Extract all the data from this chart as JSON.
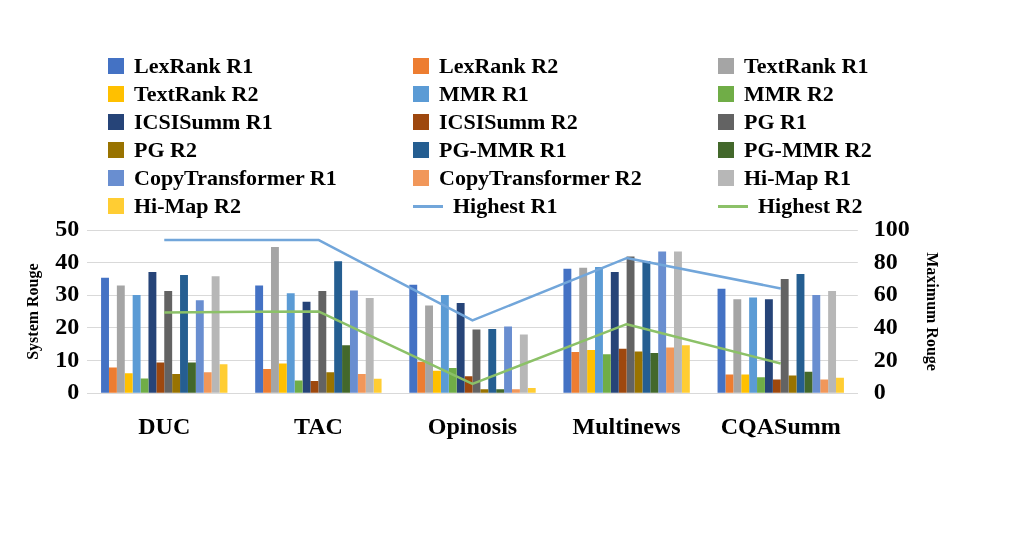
{
  "chart_data": {
    "type": "bar",
    "categories": [
      "DUC",
      "TAC",
      "Opinosis",
      "Multinews",
      "CQASumm"
    ],
    "ylabel": "System Rouge",
    "y2label": "Maximum Rouge",
    "ylim": [
      0,
      50
    ],
    "yticks": [
      0,
      10,
      20,
      30,
      40,
      50
    ],
    "y2lim": [
      0,
      100
    ],
    "y2ticks": [
      0,
      20,
      40,
      60,
      80,
      100
    ],
    "grid": "y",
    "legend": "top",
    "series": [
      {
        "name": "LexRank R1",
        "color": "#4472c4",
        "values": [
          35.4,
          33.0,
          33.2,
          38.1,
          32.0
        ]
      },
      {
        "name": "LexRank R2",
        "color": "#ed7d31",
        "values": [
          7.9,
          7.4,
          9.6,
          12.6,
          5.7
        ]
      },
      {
        "name": "TextRank R1",
        "color": "#a5a5a5",
        "values": [
          33.0,
          44.8,
          26.9,
          38.4,
          28.8
        ]
      },
      {
        "name": "TextRank R2",
        "color": "#ffc000",
        "values": [
          6.1,
          9.1,
          6.9,
          13.2,
          5.7
        ]
      },
      {
        "name": "MMR R1",
        "color": "#5b9bd5",
        "values": [
          30.1,
          30.6,
          30.1,
          38.7,
          29.3
        ]
      },
      {
        "name": "MMR R2",
        "color": "#70ad47",
        "values": [
          4.5,
          3.9,
          7.7,
          11.9,
          4.9
        ]
      },
      {
        "name": "ICSISumm R1",
        "color": "#264478",
        "values": [
          37.1,
          28.0,
          27.6,
          37.1,
          28.8
        ]
      },
      {
        "name": "ICSISumm R2",
        "color": "#9e480e",
        "values": [
          9.4,
          3.7,
          5.2,
          13.6,
          4.2
        ]
      },
      {
        "name": "PG R1",
        "color": "#636363",
        "values": [
          31.3,
          31.3,
          19.5,
          41.9,
          35.0
        ]
      },
      {
        "name": "PG R2",
        "color": "#997300",
        "values": [
          5.9,
          6.4,
          1.2,
          12.8,
          5.4
        ]
      },
      {
        "name": "PG-MMR R1",
        "color": "#255e91",
        "values": [
          36.2,
          40.4,
          19.7,
          40.5,
          36.5
        ]
      },
      {
        "name": "PG-MMR R2",
        "color": "#43682b",
        "values": [
          9.4,
          14.7,
          1.2,
          12.3,
          6.6
        ]
      },
      {
        "name": "CopyTransformer R1",
        "color": "#698ed0",
        "values": [
          28.5,
          31.5,
          20.4,
          43.4,
          30.1
        ]
      },
      {
        "name": "CopyTransformer R2",
        "color": "#f1975a",
        "values": [
          6.4,
          5.9,
          1.2,
          14.0,
          4.2
        ]
      },
      {
        "name": "Hi-Map R1",
        "color": "#b7b7b7",
        "values": [
          35.8,
          29.2,
          18.0,
          43.4,
          31.3
        ]
      },
      {
        "name": "Hi-Map R2",
        "color": "#ffcd33",
        "values": [
          8.9,
          4.4,
          1.6,
          14.7,
          4.7
        ]
      },
      {
        "name": "Highest R1",
        "type": "line",
        "axis": "y2",
        "color": "#72a6da",
        "values": [
          93.9,
          93.9,
          44.6,
          82.8,
          64.2
        ]
      },
      {
        "name": "Highest R2",
        "type": "line",
        "axis": "y2",
        "color": "#8cc168",
        "values": [
          49.5,
          50.1,
          5.7,
          42.3,
          18.2
        ]
      }
    ]
  }
}
